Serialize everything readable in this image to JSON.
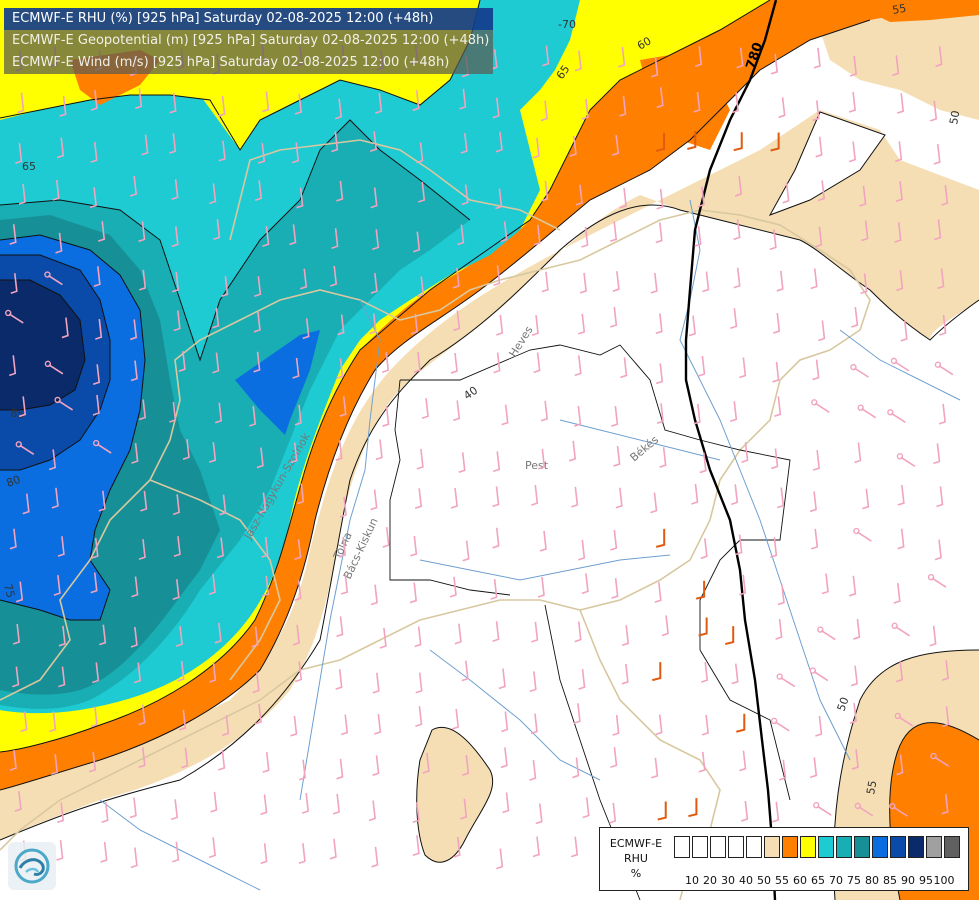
{
  "header": {
    "line1": "ECMWF-E RHU (%) [925 hPa] Saturday 02-08-2025 12:00 (+48h)",
    "line2": "ECMWF-E Geopotential (m) [925 hPa] Saturday 02-08-2025 12:00 (+48h)",
    "line3": "ECMWF-E Wind (m/s) [925 hPa] Saturday 02-08-2025 12:00 (+48h)"
  },
  "legend": {
    "model": "ECMWF-E",
    "variable": "RHU",
    "unit": "%",
    "ticks": [
      "10",
      "20",
      "30",
      "40",
      "50",
      "55",
      "60",
      "65",
      "70",
      "75",
      "80",
      "85",
      "90",
      "95",
      "100"
    ],
    "colors": [
      "#ffffff",
      "#ffffff",
      "#ffffff",
      "#ffffff",
      "#ffffff",
      "#f5deb3",
      "#ff8000",
      "#ffff00",
      "#1ecbd2",
      "#19aeb4",
      "#168f96",
      "#0a6ee0",
      "#0a4aa8",
      "#0a2a6a",
      "#a0a0a0",
      "#606060"
    ]
  },
  "contour_labels": {
    "rh": [
      "-70",
      "65",
      "65",
      "60",
      "55",
      "50",
      "40",
      "85",
      "80",
      "75",
      "50",
      "55"
    ],
    "geopotential": "780"
  },
  "places": [
    "Heves",
    "Pest",
    "Békés",
    "Jász-Nagykun-Szolnok",
    "Tolna",
    "Bács-Kiskun"
  ],
  "colors": {
    "rh_50": "#f5deb3",
    "rh_55": "#ff8000",
    "rh_60": "#ffff00",
    "rh_65": "#1ecbd2",
    "rh_70": "#19aeb4",
    "rh_75": "#168f96",
    "rh_80": "#0a6ee0",
    "rh_85": "#0a4aa8",
    "rh_90": "#0a2a6a",
    "wind_barb": "#f2a3c0",
    "wind_barb_strong": "#e05a10",
    "isoline_geopotential": "#000000",
    "border": "#d8c8a0",
    "river": "#6fa0d0"
  }
}
